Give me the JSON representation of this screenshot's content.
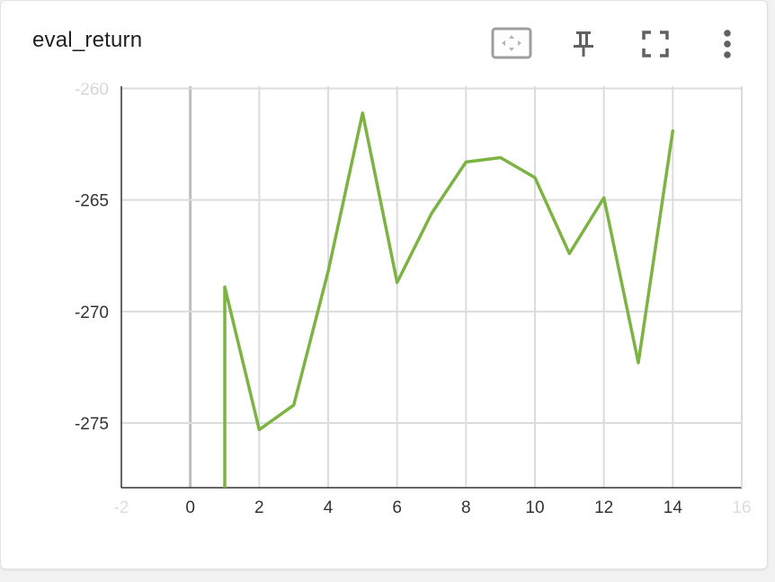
{
  "card": {
    "title": "eval_return"
  },
  "toolbar": {
    "icons": [
      "fit-domain-icon",
      "pin-icon",
      "fullscreen-icon",
      "more-vert-icon"
    ]
  },
  "chart_data": {
    "type": "line",
    "title": "eval_return",
    "xlabel": "",
    "ylabel": "",
    "xlim": [
      -2,
      16
    ],
    "ylim": [
      -277.9,
      -259.9
    ],
    "x_ticks": [
      -2,
      0,
      2,
      4,
      6,
      8,
      10,
      12,
      14,
      16
    ],
    "y_ticks": [
      -260,
      -265,
      -270,
      -275
    ],
    "grid": true,
    "legend": "none",
    "series": [
      {
        "color": "#7cb342",
        "x": [
          1,
          1,
          2,
          3,
          4,
          5,
          6,
          7,
          8,
          9,
          10,
          11,
          12,
          13,
          14
        ],
        "y": [
          -277.9,
          -268.9,
          -275.3,
          -274.2,
          -268.2,
          -261.1,
          -268.7,
          -265.6,
          -263.3,
          -263.1,
          -264.0,
          -267.4,
          -264.9,
          -272.3,
          -261.9
        ]
      }
    ]
  }
}
